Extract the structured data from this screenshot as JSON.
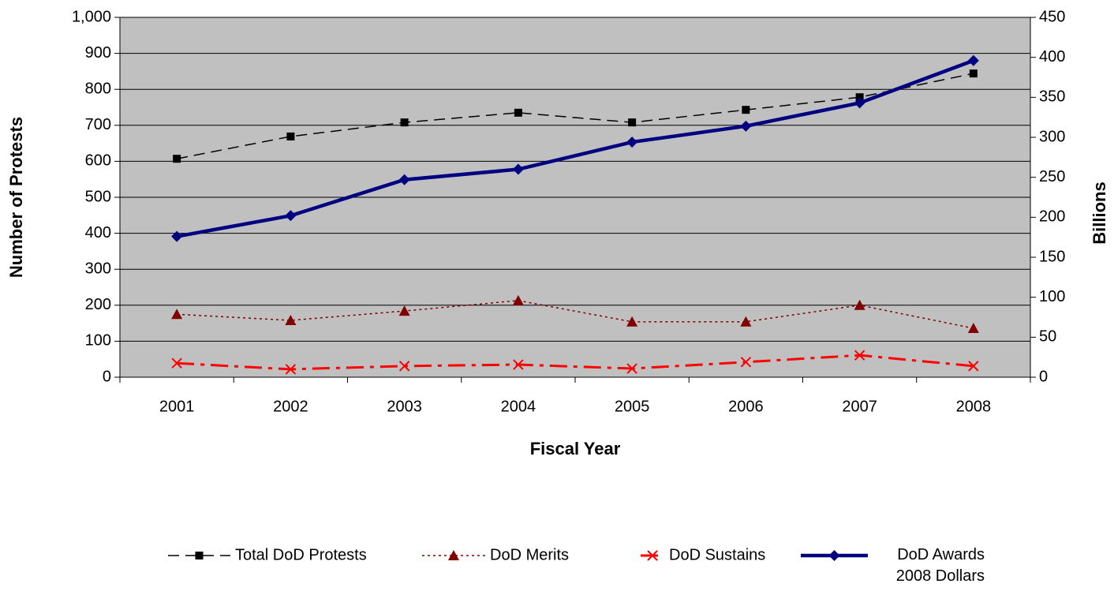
{
  "chart_data": {
    "type": "line",
    "x_label": "Fiscal Year",
    "y_label": "Number of Protests",
    "y2_label": "Billions",
    "categories": [
      "2001",
      "2002",
      "2003",
      "2004",
      "2005",
      "2006",
      "2007",
      "2008"
    ],
    "series": [
      {
        "name": "Total DoD Protests",
        "color": "#000000",
        "line_style": "dashed",
        "marker": "square",
        "values": [
          607,
          669,
          708,
          735,
          708,
          743,
          778,
          844
        ]
      },
      {
        "name": "DoD Merits",
        "color": "#800000",
        "line_style": "dotted",
        "marker": "triangle",
        "values": [
          175,
          158,
          184,
          213,
          154,
          154,
          200,
          136
        ]
      },
      {
        "name": "DoD Sustains",
        "color": "#ff0000",
        "line_style": "dashdot",
        "marker": "x",
        "values": [
          39,
          22,
          31,
          35,
          24,
          42,
          61,
          31
        ]
      },
      {
        "name": "DoD Awards 2008 Dollars",
        "color": "#000080",
        "line_style": "solid",
        "marker": "diamond",
        "axis": "y2",
        "values": [
          176,
          202,
          247,
          260,
          294,
          314,
          343,
          396
        ]
      }
    ],
    "ylim": [
      0,
      1000
    ],
    "yticks": [
      0,
      100,
      200,
      300,
      400,
      500,
      600,
      700,
      800,
      900,
      {
        "value": 1000,
        "label": "1,000"
      }
    ],
    "y2lim": [
      0,
      450
    ],
    "y2ticks": [
      0,
      50,
      100,
      150,
      200,
      250,
      300,
      350,
      400,
      450
    ],
    "grid": true,
    "plot_background": "#c0c0c0",
    "legend": "bottom"
  }
}
